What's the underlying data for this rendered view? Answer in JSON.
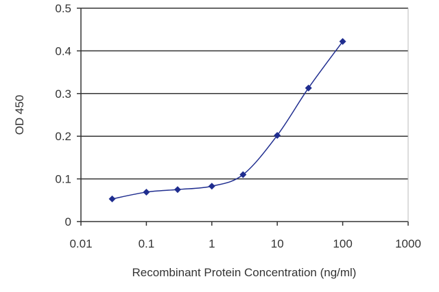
{
  "chart_data": {
    "type": "line",
    "title": "",
    "xlabel": "Recombinant Protein Concentration (ng/ml)",
    "ylabel": "OD 450",
    "x_scale": "log",
    "xlim": [
      0.01,
      1000
    ],
    "ylim": [
      0,
      0.5
    ],
    "x_ticks": [
      "0.01",
      "0.1",
      "1",
      "10",
      "100",
      "1000"
    ],
    "y_ticks": [
      "0",
      "0.1",
      "0.2",
      "0.3",
      "0.4",
      "0.5"
    ],
    "grid": "horizontal",
    "series": [
      {
        "x": [
          0.03,
          0.1,
          0.3,
          1,
          3,
          10,
          30,
          100
        ],
        "y": [
          0.053,
          0.069,
          0.075,
          0.083,
          0.11,
          0.202,
          0.313,
          0.422
        ],
        "color": "#1f2d8f",
        "marker": "diamond"
      }
    ],
    "colors": {
      "line": "#1f2d8f",
      "grid": "#333333",
      "axis": "#333333",
      "text": "#333333"
    }
  }
}
